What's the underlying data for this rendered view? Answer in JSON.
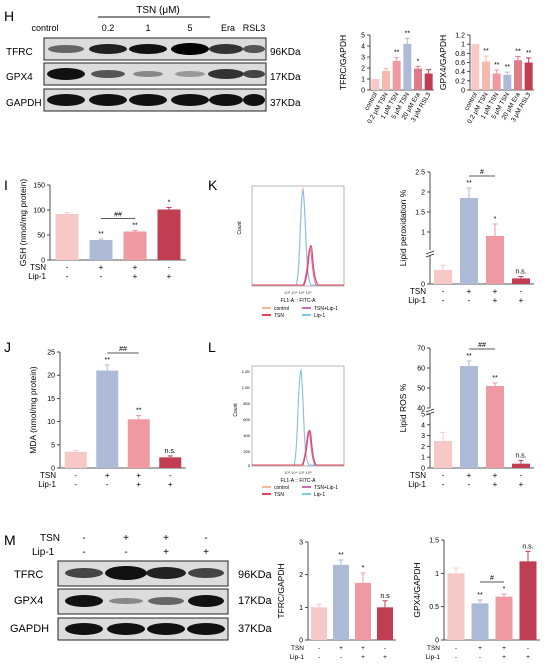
{
  "panels": {
    "H": "H",
    "I": "I",
    "J": "J",
    "K": "K",
    "L": "L",
    "M": "M"
  },
  "colors": {
    "c_light": "#f6c9c6",
    "c_peach": "#f5b9b0",
    "c_pink": "#ef9aa3",
    "c_blue": "#aebbd8",
    "c_rose": "#e07a86",
    "c_red": "#c13d51",
    "c_wine": "#8f2a42"
  },
  "blot_H": {
    "header_treat": "TSN (μM)",
    "lanes": [
      "control",
      "0.2",
      "1",
      "5",
      "Era",
      "RSL3"
    ],
    "rows": [
      {
        "name": "TFRC",
        "kda": "96KDa"
      },
      {
        "name": "GPX4",
        "kda": "17KDa"
      },
      {
        "name": "GAPDH",
        "kda": "37KDa"
      }
    ]
  },
  "blot_M": {
    "cond_rows": [
      {
        "name": "TSN",
        "signs": [
          "-",
          "+",
          "+",
          "-"
        ]
      },
      {
        "name": "Lip-1",
        "signs": [
          "-",
          "-",
          "+",
          "+"
        ]
      }
    ],
    "rows": [
      {
        "name": "TFRC",
        "kda": "96KDa"
      },
      {
        "name": "GPX4",
        "kda": "17KDa"
      },
      {
        "name": "GAPDH",
        "kda": "37KDa"
      }
    ]
  },
  "flow_K": {
    "xlabel": "FL1-A :: FITC-A",
    "ylabel": "Count",
    "legend": [
      "control",
      "TSN+Lip-1",
      "TSN",
      "Lip-1"
    ]
  },
  "flow_L": {
    "xlabel": "FL1-A :: FITC-A",
    "ylabel": "Count",
    "legend": [
      "control",
      "TSN+Lip-1",
      "TSN",
      "Lip-1"
    ],
    "yticks": [
      "1.2K",
      "1.0K",
      "800",
      "600",
      "400",
      "200",
      "0"
    ]
  },
  "chart_data": [
    {
      "id": "H_tfrc",
      "type": "bar",
      "ylabel": "TFRC/GAPDH",
      "categories": [
        "control",
        "0.2 μM TSN",
        "1 μM TSN",
        "5 μM TSN",
        "20 μM Era",
        "3 μM RSL3"
      ],
      "values": [
        1.0,
        1.75,
        2.65,
        4.2,
        1.95,
        1.5
      ],
      "errors": [
        0,
        0.2,
        0.3,
        0.5,
        0.2,
        0.35
      ],
      "sig": [
        "",
        "",
        "**",
        "**",
        "*",
        ""
      ],
      "ylim": [
        0,
        5
      ],
      "yticks": [
        0,
        1,
        2,
        3,
        4,
        5
      ],
      "colors": [
        "#f6c9c6",
        "#f5b9b0",
        "#ef9aa3",
        "#aebbd8",
        "#e07a86",
        "#c13d51"
      ]
    },
    {
      "id": "H_gpx4",
      "type": "bar",
      "ylabel": "GPX4/GAPDH",
      "categories": [
        "control",
        "0.2 μM TSN",
        "1 μM TSN",
        "5 μM TSN",
        "20 μM Era",
        "3 μM RSL3"
      ],
      "values": [
        1.0,
        0.62,
        0.36,
        0.33,
        0.65,
        0.6
      ],
      "errors": [
        0,
        0.12,
        0.08,
        0.06,
        0.08,
        0.1
      ],
      "sig": [
        "",
        "**",
        "**",
        "**",
        "**",
        "**"
      ],
      "ylim": [
        0,
        1.2
      ],
      "yticks": [
        0.0,
        0.2,
        0.4,
        0.6,
        0.8,
        1.0,
        1.2
      ],
      "colors": [
        "#f6c9c6",
        "#f5b9b0",
        "#ef9aa3",
        "#aebbd8",
        "#e07a86",
        "#c13d51"
      ]
    },
    {
      "id": "I",
      "type": "bar",
      "ylabel": "GSH (nmol/mg protein)",
      "values": [
        92,
        40,
        57,
        101
      ],
      "errors": [
        3,
        2,
        2,
        4
      ],
      "sig": [
        "",
        "**",
        "**",
        "*"
      ],
      "bracket": {
        "from": 1,
        "to": 2,
        "label": "##"
      },
      "ylim": [
        0,
        150
      ],
      "yticks": [
        0,
        50,
        100,
        150
      ],
      "treat": [
        {
          "name": "TSN",
          "signs": [
            "-",
            "+",
            "+",
            "-"
          ]
        },
        {
          "name": "Lip-1",
          "signs": [
            "-",
            "-",
            "+",
            "+"
          ]
        }
      ],
      "colors": [
        "#f6c9c6",
        "#aebbd8",
        "#ef9aa3",
        "#c13d51"
      ]
    },
    {
      "id": "J",
      "type": "bar",
      "ylabel": "MDA (nmol/mg protein)",
      "values": [
        3.5,
        21,
        10.5,
        2.3
      ],
      "errors": [
        0.3,
        1.2,
        0.8,
        0.3
      ],
      "sig": [
        "",
        "**",
        "**",
        "n.s."
      ],
      "bracket": {
        "from": 1,
        "to": 2,
        "label": "##"
      },
      "ylim": [
        0,
        25
      ],
      "yticks": [
        0,
        5,
        10,
        15,
        20,
        25
      ],
      "treat": [
        {
          "name": "TSN",
          "signs": [
            "-",
            "+",
            "+",
            "-"
          ]
        },
        {
          "name": "Lip-1",
          "signs": [
            "-",
            "-",
            "+",
            "+"
          ]
        }
      ],
      "colors": [
        "#f6c9c6",
        "#aebbd8",
        "#ef9aa3",
        "#c13d51"
      ]
    },
    {
      "id": "K",
      "type": "bar",
      "ylabel": "Lipid peroxidation %",
      "values": [
        0.15,
        1.85,
        0.9,
        0.06
      ],
      "errors": [
        0.05,
        0.25,
        0.3,
        0.02
      ],
      "sig": [
        "",
        "**",
        "*",
        "n.s."
      ],
      "bracket": {
        "from": 1,
        "to": 2,
        "label": "#"
      },
      "ylim": [
        0,
        2.5
      ],
      "yticks": [
        0.0,
        0.5,
        1.0,
        1.5,
        2.0,
        2.5
      ],
      "treat": [
        {
          "name": "TSN",
          "signs": [
            "-",
            "+",
            "+",
            "-"
          ]
        },
        {
          "name": "Lip-1",
          "signs": [
            "-",
            "-",
            "+",
            "+"
          ]
        }
      ],
      "colors": [
        "#f6c9c6",
        "#aebbd8",
        "#ef9aa3",
        "#c13d51"
      ]
    },
    {
      "id": "L",
      "type": "bar",
      "ylabel": "Lipid ROS %",
      "values": [
        2.5,
        61,
        51,
        0.4
      ],
      "errors": [
        0.8,
        2.5,
        1.5,
        0.3
      ],
      "sig": [
        "",
        "**",
        "**",
        "n.s."
      ],
      "bracket": {
        "from": 1,
        "to": 2,
        "label": "##"
      },
      "ylim": [
        0,
        70
      ],
      "yticks": [
        0,
        1,
        2,
        3,
        4,
        5,
        40,
        50,
        60,
        70
      ],
      "treat": [
        {
          "name": "TSN",
          "signs": [
            "-",
            "+",
            "+",
            "-"
          ]
        },
        {
          "name": "Lip-1",
          "signs": [
            "-",
            "-",
            "+",
            "+"
          ]
        }
      ],
      "colors": [
        "#f6c9c6",
        "#aebbd8",
        "#ef9aa3",
        "#c13d51"
      ]
    },
    {
      "id": "M_tfrc",
      "type": "bar",
      "ylabel": "TFRC/GAPDH",
      "values": [
        1.0,
        2.3,
        1.75,
        1.0
      ],
      "errors": [
        0.1,
        0.15,
        0.3,
        0.2
      ],
      "sig": [
        "",
        "**",
        "*",
        "n.s"
      ],
      "ylim": [
        0,
        3
      ],
      "yticks": [
        0,
        1,
        2,
        3
      ],
      "treat": [
        {
          "name": "TSN",
          "signs": [
            "-",
            "+",
            "+",
            "-"
          ]
        },
        {
          "name": "Lip-1",
          "signs": [
            "-",
            "-",
            "+",
            "+"
          ]
        }
      ],
      "colors": [
        "#f6c9c6",
        "#aebbd8",
        "#ef9aa3",
        "#c13d51"
      ]
    },
    {
      "id": "M_gpx4",
      "type": "bar",
      "ylabel": "GPX4/GAPDH",
      "values": [
        1.0,
        0.55,
        0.65,
        1.18
      ],
      "errors": [
        0.08,
        0.05,
        0.04,
        0.15
      ],
      "sig": [
        "",
        "**",
        "*",
        "n.s."
      ],
      "bracket": {
        "from": 1,
        "to": 2,
        "label": "#"
      },
      "ylim": [
        0,
        1.5
      ],
      "yticks": [
        0.0,
        0.5,
        1.0,
        1.5
      ],
      "treat": [
        {
          "name": "TSN",
          "signs": [
            "-",
            "+",
            "+",
            "-"
          ]
        },
        {
          "name": "Lip-1",
          "signs": [
            "-",
            "-",
            "+",
            "+"
          ]
        }
      ],
      "colors": [
        "#f6c9c6",
        "#aebbd8",
        "#ef9aa3",
        "#c13d51"
      ]
    }
  ]
}
